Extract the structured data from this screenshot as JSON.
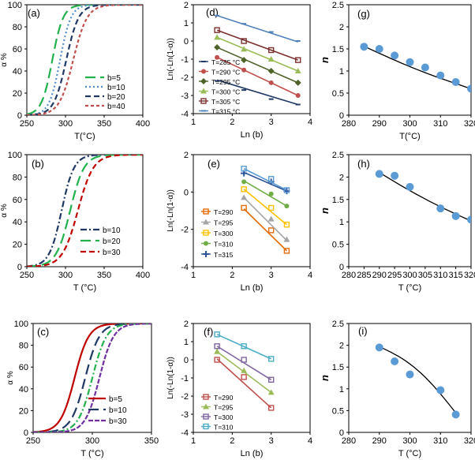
{
  "chart_data": [
    {
      "type": "line",
      "panel": "(a)",
      "xlabel": "T(°C)",
      "ylabel": "α %",
      "xlim": [
        250,
        400
      ],
      "ylim": [
        0,
        100
      ],
      "xticks": [
        250,
        300,
        350,
        400
      ],
      "yticks": [
        0,
        20,
        40,
        60,
        80,
        100
      ],
      "series": [
        {
          "name": "b=5",
          "color": "#22b14c",
          "dash": "long",
          "center": 283,
          "width": 7
        },
        {
          "name": "b=10",
          "color": "#4f8fcf",
          "dash": "dot",
          "center": 293,
          "width": 7
        },
        {
          "name": "b=20",
          "color": "#1f3864",
          "dash": "dash",
          "center": 301,
          "width": 8
        },
        {
          "name": "b=40",
          "color": "#c0504d",
          "dash": "short",
          "center": 310,
          "width": 9
        }
      ]
    },
    {
      "type": "scatter",
      "panel": "(d)",
      "xlabel": "Ln (b)",
      "ylabel": "Ln(-Ln(1-α))",
      "xlim": [
        1,
        4
      ],
      "ylim": [
        -4,
        2
      ],
      "xticks": [
        1,
        2,
        3,
        4
      ],
      "yticks": [
        -4,
        -3,
        -2,
        -1,
        0,
        1,
        2
      ],
      "x": [
        1.61,
        2.3,
        3.0,
        3.69
      ],
      "series": [
        {
          "name": "T=285 °C",
          "color": "#1f3864",
          "marker": "dash",
          "values": [
            -2.2,
            -2.7,
            -3.2,
            -3.5
          ],
          "fit": [
            -2.15,
            -3.5
          ]
        },
        {
          "name": "T=290 °C",
          "color": "#c0504d",
          "marker": "circle",
          "values": [
            -0.9,
            -1.6,
            -2.3,
            -3.0
          ],
          "fit": [
            -0.9,
            -3.0
          ]
        },
        {
          "name": "T=295 °C",
          "color": "#4f6228",
          "marker": "diamond",
          "values": [
            -0.35,
            -1.05,
            -1.65,
            -2.3
          ],
          "fit": [
            -0.35,
            -2.3
          ]
        },
        {
          "name": "T=300 °C",
          "color": "#9bbb59",
          "marker": "triangle",
          "values": [
            0.2,
            -0.45,
            -1.0,
            -1.65
          ],
          "fit": [
            0.2,
            -1.65
          ]
        },
        {
          "name": "T=305 °C",
          "color": "#7b2f2f",
          "marker": "square",
          "values": [
            0.6,
            0.0,
            -0.5,
            -1.05
          ],
          "fit": [
            0.6,
            -1.05
          ]
        },
        {
          "name": "T=315 °C",
          "color": "#4f81bd",
          "marker": "dash",
          "values": [
            1.4,
            0.95,
            0.5,
            0.0
          ],
          "fit": [
            1.4,
            -0.05
          ]
        }
      ]
    },
    {
      "type": "scatter",
      "panel": "(g)",
      "xlabel": "T(°C)",
      "ylabel": "n",
      "xlim": [
        280,
        320
      ],
      "ylim": [
        0,
        2.5
      ],
      "xticks": [
        280,
        290,
        300,
        310,
        320
      ],
      "yticks": [
        0,
        0.5,
        1,
        1.5,
        2,
        2.5
      ],
      "x": [
        285,
        290,
        295,
        300,
        305,
        310,
        315,
        320
      ],
      "values": [
        1.55,
        1.5,
        1.35,
        1.2,
        1.08,
        0.9,
        0.75,
        0.6
      ],
      "fit": [
        1.56,
        0.6
      ]
    },
    {
      "type": "line",
      "panel": "(b)",
      "xlabel": "T (°C)",
      "ylabel": "α %",
      "xlim": [
        250,
        400
      ],
      "ylim": [
        0,
        100
      ],
      "xticks": [
        250,
        300,
        350,
        400
      ],
      "yticks": [
        0,
        20,
        40,
        60,
        80,
        100
      ],
      "series": [
        {
          "name": "b=10",
          "color": "#1f3864",
          "dash": "dashdot",
          "center": 295,
          "width": 8
        },
        {
          "name": "b=20",
          "color": "#22b14c",
          "dash": "long",
          "center": 306,
          "width": 9
        },
        {
          "name": "b=30",
          "color": "#c00000",
          "dash": "dash",
          "center": 316,
          "width": 10
        }
      ]
    },
    {
      "type": "scatter",
      "panel": "(e)",
      "xlabel": "Ln (b)",
      "ylabel": "Ln(-Ln(1-α))",
      "xlim": [
        1,
        4
      ],
      "ylim": [
        -4,
        2
      ],
      "xticks": [
        1,
        2,
        3,
        4
      ],
      "yticks": [
        -4,
        -2,
        0,
        2
      ],
      "x": [
        2.3,
        3.0,
        3.4
      ],
      "series": [
        {
          "name": "T=290",
          "color": "#e46c0a",
          "marker": "square",
          "values": [
            -0.85,
            -2.05,
            -3.15
          ],
          "fit": [
            -0.9,
            -3.15
          ]
        },
        {
          "name": "T=295",
          "color": "#a5a5a5",
          "marker": "triangle",
          "values": [
            -0.3,
            -1.45,
            -2.55
          ],
          "fit": [
            -0.3,
            -2.6
          ]
        },
        {
          "name": "T=300",
          "color": "#ffc000",
          "marker": "square",
          "values": [
            0.15,
            -0.85,
            -1.75
          ],
          "fit": [
            0.15,
            -1.75
          ]
        },
        {
          "name": "T=310",
          "color": "#70ad47",
          "marker": "circle",
          "values": [
            0.55,
            -0.1,
            -0.75
          ],
          "fit": [
            0.6,
            -0.75
          ]
        },
        {
          "name": "T=315",
          "color": "#2e5597",
          "marker": "plus",
          "values": [
            1.0,
            0.55,
            0.05
          ],
          "fit": [
            1.05,
            0.05
          ]
        },
        {
          "name": "",
          "color": "#5b9bd5",
          "marker": "square",
          "values": [
            1.25,
            0.7,
            0.1
          ],
          "fit": [
            1.25,
            0.1
          ]
        }
      ]
    },
    {
      "type": "scatter",
      "panel": "(h)",
      "xlabel": "T (°C)",
      "ylabel": "n",
      "xlim": [
        280,
        320
      ],
      "ylim": [
        0,
        2.5
      ],
      "xticks": [
        280,
        285,
        290,
        295,
        300,
        305,
        310,
        315,
        320
      ],
      "yticks": [
        0,
        0.5,
        1,
        1.5,
        2,
        2.5
      ],
      "x": [
        290,
        295,
        300,
        310,
        315,
        320
      ],
      "values": [
        2.07,
        2.03,
        1.78,
        1.3,
        1.13,
        1.05
      ],
      "fit": [
        2.1,
        1.02
      ]
    },
    {
      "type": "line",
      "panel": "(c)",
      "xlabel": "T (°C)",
      "ylabel": "α %",
      "xlim": [
        250,
        350
      ],
      "ylim": [
        0,
        100
      ],
      "xticks": [
        250,
        300,
        350
      ],
      "yticks": [
        0,
        20,
        40,
        60,
        80,
        100
      ],
      "series": [
        {
          "name": "b=5",
          "color": "#c00000",
          "dash": "solid",
          "center": 285,
          "width": 6
        },
        {
          "name": "b=10",
          "color": "#1f3864",
          "dash": "long",
          "center": 294,
          "width": 6
        },
        {
          "name": "",
          "color": "#22b14c",
          "dash": "dashdot",
          "center": 300,
          "width": 6
        },
        {
          "name": "b=30",
          "color": "#7030a0",
          "dash": "double",
          "center": 306,
          "width": 6
        }
      ]
    },
    {
      "type": "scatter",
      "panel": "(f)",
      "xlabel": "Ln (b)",
      "ylabel": "Ln(-Ln(1-α))",
      "xlim": [
        1,
        4
      ],
      "ylim": [
        -4,
        2
      ],
      "xticks": [
        1,
        2,
        3,
        4
      ],
      "yticks": [
        -4,
        -3,
        -2,
        -1,
        0,
        1,
        2
      ],
      "x": [
        1.61,
        2.3,
        3.0
      ],
      "series": [
        {
          "name": "T=290",
          "color": "#c0504d",
          "marker": "square",
          "values": [
            0.0,
            -0.95,
            -2.65
          ],
          "fit": [
            0.05,
            -2.65
          ]
        },
        {
          "name": "T=295",
          "color": "#9bbb59",
          "marker": "triangle",
          "values": [
            0.45,
            -0.6,
            -1.8
          ],
          "fit": [
            0.45,
            -1.8
          ]
        },
        {
          "name": "T=300",
          "color": "#8064a2",
          "marker": "square",
          "values": [
            0.75,
            0.0,
            -1.1
          ],
          "fit": [
            0.75,
            -1.1
          ]
        },
        {
          "name": "T=310",
          "color": "#4bacc6",
          "marker": "square",
          "values": [
            1.4,
            0.75,
            0.05
          ],
          "fit": [
            1.4,
            0.05
          ]
        }
      ]
    },
    {
      "type": "scatter",
      "panel": "(i)",
      "xlabel": "T (°C)",
      "ylabel": "n",
      "xlim": [
        280,
        320
      ],
      "ylim": [
        0,
        2.5
      ],
      "xticks": [
        280,
        290,
        300,
        310,
        320
      ],
      "yticks": [
        0,
        0.5,
        1,
        1.5,
        2,
        2.5
      ],
      "x": [
        290,
        295,
        300,
        310,
        315
      ],
      "values": [
        1.95,
        1.63,
        1.33,
        0.97,
        0.41
      ],
      "fit": [
        1.97,
        0.45
      ]
    }
  ]
}
